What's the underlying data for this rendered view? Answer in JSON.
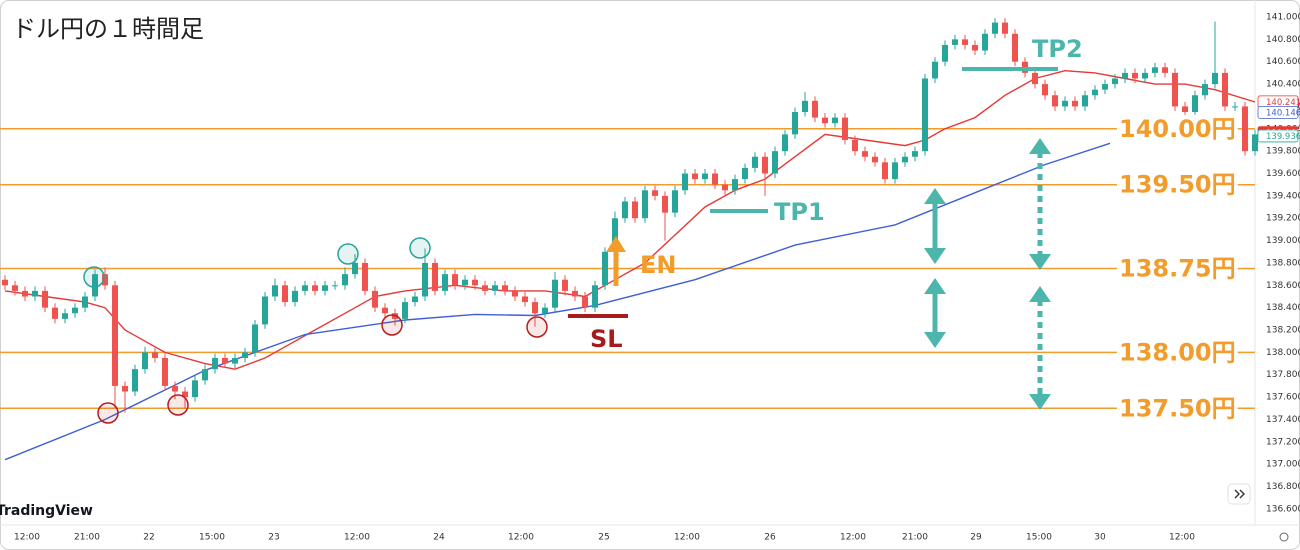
{
  "chart_data": {
    "type": "candlestick",
    "title": "ドル円の１時間足",
    "watermark": "TradingView",
    "up_color": "#26a69a",
    "down_color": "#ef5350",
    "xlim": [
      -0.5,
      125
    ],
    "ylim": [
      136.456,
      141.152
    ],
    "grid": false,
    "xticks": [
      {
        "value": 2.2,
        "label": "12:00"
      },
      {
        "value": 8.2,
        "label": "21:00"
      },
      {
        "value": 14.4,
        "label": "22"
      },
      {
        "value": 20.7,
        "label": "15:00"
      },
      {
        "value": 26.9,
        "label": "23"
      },
      {
        "value": 35.2,
        "label": "12:00"
      },
      {
        "value": 43.4,
        "label": "24"
      },
      {
        "value": 51.6,
        "label": "12:00"
      },
      {
        "value": 59.9,
        "label": "25"
      },
      {
        "value": 68.2,
        "label": "12:00"
      },
      {
        "value": 76.5,
        "label": "26"
      },
      {
        "value": 84.8,
        "label": "12:00"
      },
      {
        "value": 91.0,
        "label": "21:00"
      },
      {
        "value": 97.1,
        "label": "29"
      },
      {
        "value": 103.4,
        "label": "15:00"
      },
      {
        "value": 109.5,
        "label": "30"
      },
      {
        "value": 117.7,
        "label": "12:00"
      }
    ],
    "yticks": [
      {
        "value": 136.6,
        "label": "136.600"
      },
      {
        "value": 136.8,
        "label": "136.800"
      },
      {
        "value": 137.0,
        "label": "137.000"
      },
      {
        "value": 137.2,
        "label": "137.200"
      },
      {
        "value": 137.4,
        "label": "137.400"
      },
      {
        "value": 137.6,
        "label": "137.600"
      },
      {
        "value": 137.8,
        "label": "137.800"
      },
      {
        "value": 138.0,
        "label": "138.000"
      },
      {
        "value": 138.2,
        "label": "138.200"
      },
      {
        "value": 138.4,
        "label": "138.400"
      },
      {
        "value": 138.6,
        "label": "138.600"
      },
      {
        "value": 138.8,
        "label": "138.800"
      },
      {
        "value": 139.0,
        "label": "139.000"
      },
      {
        "value": 139.2,
        "label": "139.200"
      },
      {
        "value": 139.4,
        "label": "139.400"
      },
      {
        "value": 139.6,
        "label": "139.600"
      },
      {
        "value": 139.8,
        "label": "139.800"
      },
      {
        "value": 140.0,
        "label": "140.000"
      },
      {
        "value": 140.2,
        "label": "140.200"
      },
      {
        "value": 140.4,
        "label": "140.400"
      },
      {
        "value": 140.6,
        "label": "140.600"
      },
      {
        "value": 140.8,
        "label": "140.800"
      },
      {
        "value": 141.0,
        "label": "141.000"
      }
    ],
    "x": [
      0,
      1,
      2,
      3,
      4,
      5,
      6,
      7,
      8,
      9,
      10,
      11,
      12,
      13,
      14,
      15,
      16,
      17,
      18,
      19,
      20,
      21,
      22,
      23,
      24,
      25,
      26,
      27,
      28,
      29,
      30,
      31,
      32,
      33,
      34,
      35,
      36,
      37,
      38,
      39,
      40,
      41,
      42,
      43,
      44,
      45,
      46,
      47,
      48,
      49,
      50,
      51,
      52,
      53,
      54,
      55,
      56,
      57,
      58,
      59,
      60,
      61,
      62,
      63,
      64,
      65,
      66,
      67,
      68,
      69,
      70,
      71,
      72,
      73,
      74,
      75,
      76,
      77,
      78,
      79,
      80,
      81,
      82,
      83,
      84,
      85,
      86,
      87,
      88,
      89,
      90,
      91,
      92,
      93,
      94,
      95,
      96,
      97,
      98,
      99,
      100,
      101,
      102,
      103,
      104,
      105,
      106,
      107,
      108,
      109,
      110,
      111,
      112,
      113,
      114,
      115,
      116,
      117,
      118,
      119,
      120,
      121,
      122,
      123,
      124,
      125
    ],
    "ohlc": [
      [
        138.65,
        138.69,
        138.56,
        138.6
      ],
      [
        138.6,
        138.64,
        138.51,
        138.55
      ],
      [
        138.55,
        138.59,
        138.46,
        138.5
      ],
      [
        138.5,
        138.59,
        138.46,
        138.55
      ],
      [
        138.55,
        138.59,
        138.36,
        138.4
      ],
      [
        138.4,
        138.44,
        138.26,
        138.3
      ],
      [
        138.3,
        138.39,
        138.26,
        138.35
      ],
      [
        138.35,
        138.44,
        138.31,
        138.4
      ],
      [
        138.4,
        138.54,
        138.36,
        138.5
      ],
      [
        138.5,
        138.74,
        138.46,
        138.7
      ],
      [
        138.7,
        138.76,
        138.56,
        138.6
      ],
      [
        138.6,
        138.64,
        137.5,
        137.7
      ],
      [
        137.7,
        137.74,
        137.46,
        137.65
      ],
      [
        137.65,
        137.89,
        137.61,
        137.85
      ],
      [
        137.85,
        138.05,
        137.81,
        138.0
      ],
      [
        138.0,
        138.04,
        137.91,
        137.95
      ],
      [
        137.95,
        137.99,
        137.66,
        137.7
      ],
      [
        137.7,
        137.74,
        137.58,
        137.65
      ],
      [
        137.65,
        137.69,
        137.5,
        137.6
      ],
      [
        137.6,
        137.79,
        137.56,
        137.75
      ],
      [
        137.75,
        137.89,
        137.71,
        137.85
      ],
      [
        137.85,
        137.99,
        137.81,
        137.95
      ],
      [
        137.95,
        137.99,
        137.86,
        137.9
      ],
      [
        137.9,
        137.99,
        137.86,
        137.95
      ],
      [
        137.95,
        138.04,
        137.91,
        138.0
      ],
      [
        138.0,
        138.29,
        137.96,
        138.25
      ],
      [
        138.25,
        138.54,
        138.21,
        138.5
      ],
      [
        138.5,
        138.66,
        138.46,
        138.6
      ],
      [
        138.6,
        138.64,
        138.41,
        138.45
      ],
      [
        138.45,
        138.59,
        138.41,
        138.55
      ],
      [
        138.55,
        138.64,
        138.51,
        138.6
      ],
      [
        138.6,
        138.64,
        138.51,
        138.55
      ],
      [
        138.55,
        138.64,
        138.51,
        138.6
      ],
      [
        138.6,
        138.64,
        138.56,
        138.6
      ],
      [
        138.6,
        138.76,
        138.56,
        138.7
      ],
      [
        138.7,
        138.88,
        138.66,
        138.8
      ],
      [
        138.8,
        138.84,
        138.51,
        138.55
      ],
      [
        138.55,
        138.59,
        138.36,
        138.4
      ],
      [
        138.4,
        138.44,
        138.31,
        138.35
      ],
      [
        138.35,
        138.39,
        138.24,
        138.3
      ],
      [
        138.3,
        138.49,
        138.26,
        138.45
      ],
      [
        138.45,
        138.54,
        138.41,
        138.5
      ],
      [
        138.5,
        138.93,
        138.46,
        138.8
      ],
      [
        138.8,
        138.84,
        138.51,
        138.55
      ],
      [
        138.55,
        138.74,
        138.51,
        138.7
      ],
      [
        138.7,
        138.74,
        138.56,
        138.6
      ],
      [
        138.6,
        138.69,
        138.56,
        138.65
      ],
      [
        138.65,
        138.69,
        138.56,
        138.6
      ],
      [
        138.6,
        138.64,
        138.51,
        138.55
      ],
      [
        138.55,
        138.64,
        138.51,
        138.6
      ],
      [
        138.6,
        138.64,
        138.51,
        138.55
      ],
      [
        138.55,
        138.59,
        138.46,
        138.5
      ],
      [
        138.5,
        138.54,
        138.41,
        138.45
      ],
      [
        138.45,
        138.49,
        138.23,
        138.35
      ],
      [
        138.35,
        138.44,
        138.31,
        138.4
      ],
      [
        138.4,
        138.72,
        138.36,
        138.65
      ],
      [
        138.65,
        138.69,
        138.51,
        138.55
      ],
      [
        138.55,
        138.59,
        138.46,
        138.5
      ],
      [
        138.5,
        138.54,
        138.36,
        138.4
      ],
      [
        138.4,
        138.64,
        138.36,
        138.6
      ],
      [
        138.6,
        138.94,
        138.56,
        138.9
      ],
      [
        138.9,
        139.26,
        138.86,
        139.2
      ],
      [
        139.2,
        139.39,
        139.16,
        139.35
      ],
      [
        139.35,
        139.39,
        139.16,
        139.2
      ],
      [
        139.2,
        139.49,
        139.16,
        139.45
      ],
      [
        139.45,
        139.49,
        139.36,
        139.4
      ],
      [
        139.4,
        139.44,
        139.0,
        139.25
      ],
      [
        139.25,
        139.49,
        139.21,
        139.45
      ],
      [
        139.45,
        139.64,
        139.41,
        139.6
      ],
      [
        139.6,
        139.64,
        139.51,
        139.55
      ],
      [
        139.55,
        139.64,
        139.51,
        139.6
      ],
      [
        139.6,
        139.64,
        139.46,
        139.5
      ],
      [
        139.5,
        139.54,
        139.41,
        139.45
      ],
      [
        139.45,
        139.59,
        139.41,
        139.55
      ],
      [
        139.55,
        139.69,
        139.51,
        139.65
      ],
      [
        139.65,
        139.79,
        139.61,
        139.75
      ],
      [
        139.75,
        139.79,
        139.4,
        139.6
      ],
      [
        139.6,
        139.84,
        139.56,
        139.8
      ],
      [
        139.8,
        139.99,
        139.76,
        139.95
      ],
      [
        139.95,
        140.19,
        139.91,
        140.15
      ],
      [
        140.15,
        140.33,
        140.11,
        140.25
      ],
      [
        140.25,
        140.29,
        140.06,
        140.1
      ],
      [
        140.1,
        140.14,
        140.01,
        140.05
      ],
      [
        140.05,
        140.14,
        140.01,
        140.1
      ],
      [
        140.1,
        140.14,
        139.86,
        139.9
      ],
      [
        139.9,
        139.94,
        139.76,
        139.8
      ],
      [
        139.8,
        139.84,
        139.71,
        139.75
      ],
      [
        139.75,
        139.79,
        139.66,
        139.7
      ],
      [
        139.7,
        139.74,
        139.51,
        139.55
      ],
      [
        139.55,
        139.74,
        139.51,
        139.7
      ],
      [
        139.7,
        139.79,
        139.66,
        139.75
      ],
      [
        139.75,
        139.84,
        139.71,
        139.8
      ],
      [
        139.8,
        140.49,
        139.76,
        140.45
      ],
      [
        140.45,
        140.64,
        140.41,
        140.6
      ],
      [
        140.6,
        140.79,
        140.56,
        140.75
      ],
      [
        140.75,
        140.84,
        140.71,
        140.8
      ],
      [
        140.8,
        140.84,
        140.71,
        140.75
      ],
      [
        140.75,
        140.79,
        140.66,
        140.7
      ],
      [
        140.7,
        140.89,
        140.66,
        140.85
      ],
      [
        140.85,
        140.99,
        140.81,
        140.95
      ],
      [
        140.95,
        140.99,
        140.81,
        140.85
      ],
      [
        140.85,
        140.89,
        140.56,
        140.6
      ],
      [
        140.6,
        140.64,
        140.46,
        140.5
      ],
      [
        140.5,
        140.54,
        140.36,
        140.4
      ],
      [
        140.4,
        140.44,
        140.26,
        140.3
      ],
      [
        140.3,
        140.34,
        140.16,
        140.2
      ],
      [
        140.2,
        140.29,
        140.16,
        140.25
      ],
      [
        140.25,
        140.29,
        140.16,
        140.2
      ],
      [
        140.2,
        140.34,
        140.16,
        140.3
      ],
      [
        140.3,
        140.39,
        140.26,
        140.35
      ],
      [
        140.35,
        140.44,
        140.31,
        140.4
      ],
      [
        140.4,
        140.49,
        140.36,
        140.45
      ],
      [
        140.45,
        140.54,
        140.41,
        140.5
      ],
      [
        140.5,
        140.54,
        140.41,
        140.45
      ],
      [
        140.45,
        140.54,
        140.41,
        140.5
      ],
      [
        140.5,
        140.59,
        140.46,
        140.55
      ],
      [
        140.55,
        140.59,
        140.46,
        140.5
      ],
      [
        140.5,
        140.54,
        140.16,
        140.2
      ],
      [
        140.2,
        140.24,
        140.11,
        140.15
      ],
      [
        140.15,
        140.34,
        140.11,
        140.3
      ],
      [
        140.3,
        140.44,
        140.26,
        140.4
      ],
      [
        140.4,
        140.96,
        140.36,
        140.5
      ],
      [
        140.5,
        140.54,
        140.16,
        140.2
      ],
      [
        140.2,
        140.24,
        140.16,
        140.2
      ],
      [
        140.2,
        140.24,
        139.76,
        139.8
      ],
      [
        139.8,
        139.99,
        139.76,
        139.95
      ]
    ],
    "series": [
      {
        "type": "line",
        "color": "#e53935",
        "x": [
          0,
          4,
          8,
          10,
          12,
          16,
          20,
          23,
          26,
          28,
          31,
          34,
          37,
          40,
          45,
          50,
          54,
          58,
          61,
          64,
          67,
          70,
          73,
          76,
          79,
          82,
          86,
          90,
          92,
          94,
          97,
          100,
          103,
          106,
          109,
          112,
          115,
          118,
          121,
          125
        ],
        "values": [
          138.55,
          138.5,
          138.45,
          138.4,
          138.2,
          138.0,
          137.9,
          137.85,
          137.95,
          138.05,
          138.2,
          138.35,
          138.5,
          138.55,
          138.6,
          138.55,
          138.55,
          138.5,
          138.65,
          138.8,
          139.05,
          139.3,
          139.45,
          139.55,
          139.75,
          139.95,
          139.9,
          139.85,
          139.9,
          140.0,
          140.1,
          140.3,
          140.45,
          140.52,
          140.5,
          140.45,
          140.4,
          140.4,
          140.35,
          140.24
        ]
      },
      {
        "type": "line",
        "color": "#3f5fd6",
        "x": [
          0,
          10,
          20,
          30,
          40,
          47,
          53,
          59,
          69,
          79,
          89,
          99,
          104,
          110.5
        ],
        "values": [
          137.04,
          137.4,
          137.84,
          138.16,
          138.29,
          138.34,
          138.33,
          138.42,
          138.65,
          138.96,
          139.14,
          139.5,
          139.68,
          139.87
        ]
      }
    ],
    "levels_color": "#f29c2b",
    "levels": [
      {
        "value": 140.0,
        "label": "140.00円"
      },
      {
        "value": 139.5,
        "label": "139.50円"
      },
      {
        "value": 138.75,
        "label": "138.75円"
      },
      {
        "value": 138.0,
        "label": "138.00円"
      },
      {
        "value": 137.5,
        "label": "137.50円"
      }
    ],
    "price_tags": [
      {
        "value": 140.241,
        "color": "#e53935",
        "style": "outline"
      },
      {
        "value": 140.146,
        "color": "#3f5fd6",
        "style": "outline"
      },
      {
        "value": 139.966,
        "color": "#e53935",
        "style": "filled"
      },
      {
        "value": 139.936,
        "color": "#26a69a",
        "style": "outline"
      }
    ],
    "annotations": {
      "tp2": "TP2",
      "tp1": "TP1",
      "en": "EN",
      "sl": "SL"
    }
  }
}
